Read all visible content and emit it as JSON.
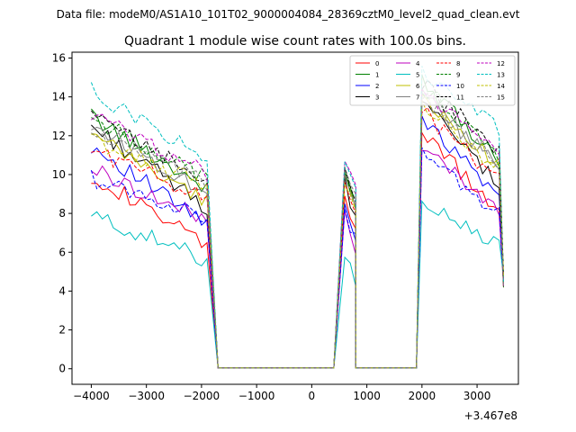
{
  "figure": {
    "suptitle": "Data file: modeM0/AS1A10_101T02_9000004084_28369cztM0_level2_quad_clean.evt"
  },
  "chart_data": {
    "type": "line",
    "title": "Quadrant 1 module wise count rates with 100.0s bins.",
    "xlabel": "",
    "ylabel": "",
    "x_offset_label": "+3.467e8",
    "xlim": [
      -4350,
      3750
    ],
    "ylim": [
      -0.8,
      16.3
    ],
    "x_ticks": [
      -4000,
      -3000,
      -2000,
      -1000,
      0,
      1000,
      2000,
      3000
    ],
    "y_ticks": [
      0,
      2,
      4,
      6,
      8,
      10,
      12,
      14,
      16
    ],
    "grid": false,
    "legend_position": "top-right",
    "segments": [
      {
        "x0": -4000,
        "n": 22
      },
      {
        "x0": -1700,
        "n": 22
      },
      {
        "x0": 600,
        "n": 3
      },
      {
        "x0": 800,
        "n": 12
      },
      {
        "x0": 2000,
        "n": 15
      }
    ],
    "series": [
      {
        "name": "0",
        "color": "#ff0000",
        "dash": "solid",
        "seg_levels": [
          10.0,
          0.05,
          9.2,
          0.05,
          12.3
        ],
        "seg_end": [
          6.3,
          0.05,
          7.0,
          0.05,
          8.0
        ]
      },
      {
        "name": "1",
        "color": "#008000",
        "dash": "solid",
        "seg_levels": [
          13.0,
          0.05,
          10.3,
          0.05,
          14.7
        ],
        "seg_end": [
          9.3,
          0.05,
          8.0,
          0.05,
          10.8
        ]
      },
      {
        "name": "2",
        "color": "#0000ff",
        "dash": "solid",
        "seg_levels": [
          11.5,
          0.05,
          8.5,
          0.05,
          13.0
        ],
        "seg_end": [
          7.4,
          0.05,
          6.5,
          0.05,
          8.8
        ]
      },
      {
        "name": "3",
        "color": "#000000",
        "dash": "solid",
        "seg_levels": [
          12.5,
          0.05,
          9.8,
          0.05,
          13.7
        ],
        "seg_end": [
          8.3,
          0.05,
          7.5,
          0.05,
          9.5
        ]
      },
      {
        "name": "4",
        "color": "#bf00bf",
        "dash": "solid",
        "seg_levels": [
          10.3,
          0.05,
          8.0,
          0.05,
          11.2
        ],
        "seg_end": [
          7.6,
          0.05,
          6.3,
          0.05,
          8.3
        ]
      },
      {
        "name": "5",
        "color": "#00bfbf",
        "dash": "solid",
        "seg_levels": [
          7.9,
          0.05,
          6.1,
          0.05,
          8.6
        ],
        "seg_end": [
          5.6,
          0.05,
          4.5,
          0.05,
          6.2
        ]
      },
      {
        "name": "6",
        "color": "#bfbf00",
        "dash": "solid",
        "seg_levels": [
          12.0,
          0.05,
          10.2,
          0.05,
          13.9
        ],
        "seg_end": [
          8.6,
          0.05,
          8.2,
          0.05,
          10.5
        ]
      },
      {
        "name": "7",
        "color": "#808080",
        "dash": "solid",
        "seg_levels": [
          12.6,
          0.05,
          10.0,
          0.05,
          14.1
        ],
        "seg_end": [
          9.1,
          0.05,
          8.1,
          0.05,
          10.4
        ]
      },
      {
        "name": "8",
        "color": "#ff0000",
        "dash": "dashed",
        "seg_levels": [
          11.3,
          0.05,
          9.5,
          0.05,
          13.3
        ],
        "seg_end": [
          8.8,
          0.05,
          7.7,
          0.05,
          9.7
        ]
      },
      {
        "name": "9",
        "color": "#008000",
        "dash": "dashed",
        "seg_levels": [
          12.9,
          0.05,
          10.5,
          0.05,
          14.6
        ],
        "seg_end": [
          9.8,
          0.05,
          8.5,
          0.05,
          10.9
        ]
      },
      {
        "name": "10",
        "color": "#0000ff",
        "dash": "dashed",
        "seg_levels": [
          9.8,
          0.05,
          8.0,
          0.05,
          11.1
        ],
        "seg_end": [
          7.8,
          0.05,
          6.8,
          0.05,
          8.0
        ]
      },
      {
        "name": "11",
        "color": "#000000",
        "dash": "dashed",
        "seg_levels": [
          13.0,
          0.05,
          10.6,
          0.05,
          14.7
        ],
        "seg_end": [
          9.7,
          0.05,
          8.6,
          0.05,
          11.2
        ]
      },
      {
        "name": "12",
        "color": "#bf00bf",
        "dash": "dashed",
        "seg_levels": [
          13.1,
          0.05,
          10.7,
          0.05,
          14.4
        ],
        "seg_end": [
          10.1,
          0.05,
          9.0,
          0.05,
          11.4
        ]
      },
      {
        "name": "13",
        "color": "#00bfbf",
        "dash": "dashed",
        "seg_levels": [
          14.3,
          0.05,
          10.6,
          0.05,
          15.4
        ],
        "seg_end": [
          10.8,
          0.05,
          9.3,
          0.05,
          12.4
        ]
      },
      {
        "name": "14",
        "color": "#bfbf00",
        "dash": "dashed",
        "seg_levels": [
          11.8,
          0.05,
          9.7,
          0.05,
          13.6
        ],
        "seg_end": [
          9.4,
          0.05,
          8.3,
          0.05,
          10.2
        ]
      },
      {
        "name": "15",
        "color": "#808080",
        "dash": "dashed",
        "seg_levels": [
          12.2,
          0.05,
          10.1,
          0.05,
          14.0
        ],
        "seg_end": [
          9.5,
          0.05,
          8.7,
          0.05,
          10.6
        ]
      }
    ]
  }
}
